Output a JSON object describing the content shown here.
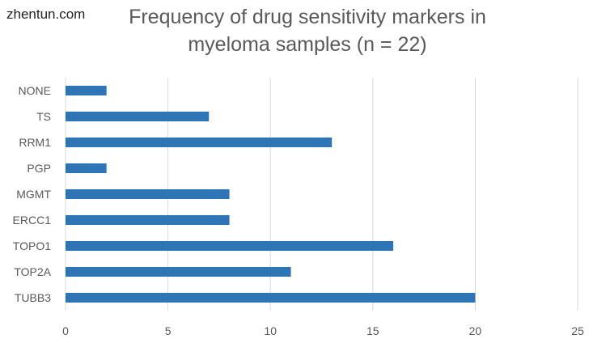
{
  "watermark": "zhentun.com",
  "chart_data": {
    "type": "bar",
    "orientation": "horizontal",
    "title_lines": [
      "Frequency of drug sensitivity markers in",
      "myeloma samples (n = 22)"
    ],
    "categories": [
      "NONE",
      "TS",
      "RRM1",
      "PGP",
      "MGMT",
      "ERCC1",
      "TOPO1",
      "TOP2A",
      "TUBB3"
    ],
    "values": [
      2,
      7,
      13,
      2,
      8,
      8,
      16,
      11,
      20
    ],
    "xlim": [
      0,
      25
    ],
    "xticks": [
      0,
      5,
      10,
      15,
      20,
      25
    ],
    "grid": true,
    "legend": "none",
    "bar_color": "#2e75b6",
    "grid_color": "#d9d9d9",
    "text_color": "#595959"
  }
}
